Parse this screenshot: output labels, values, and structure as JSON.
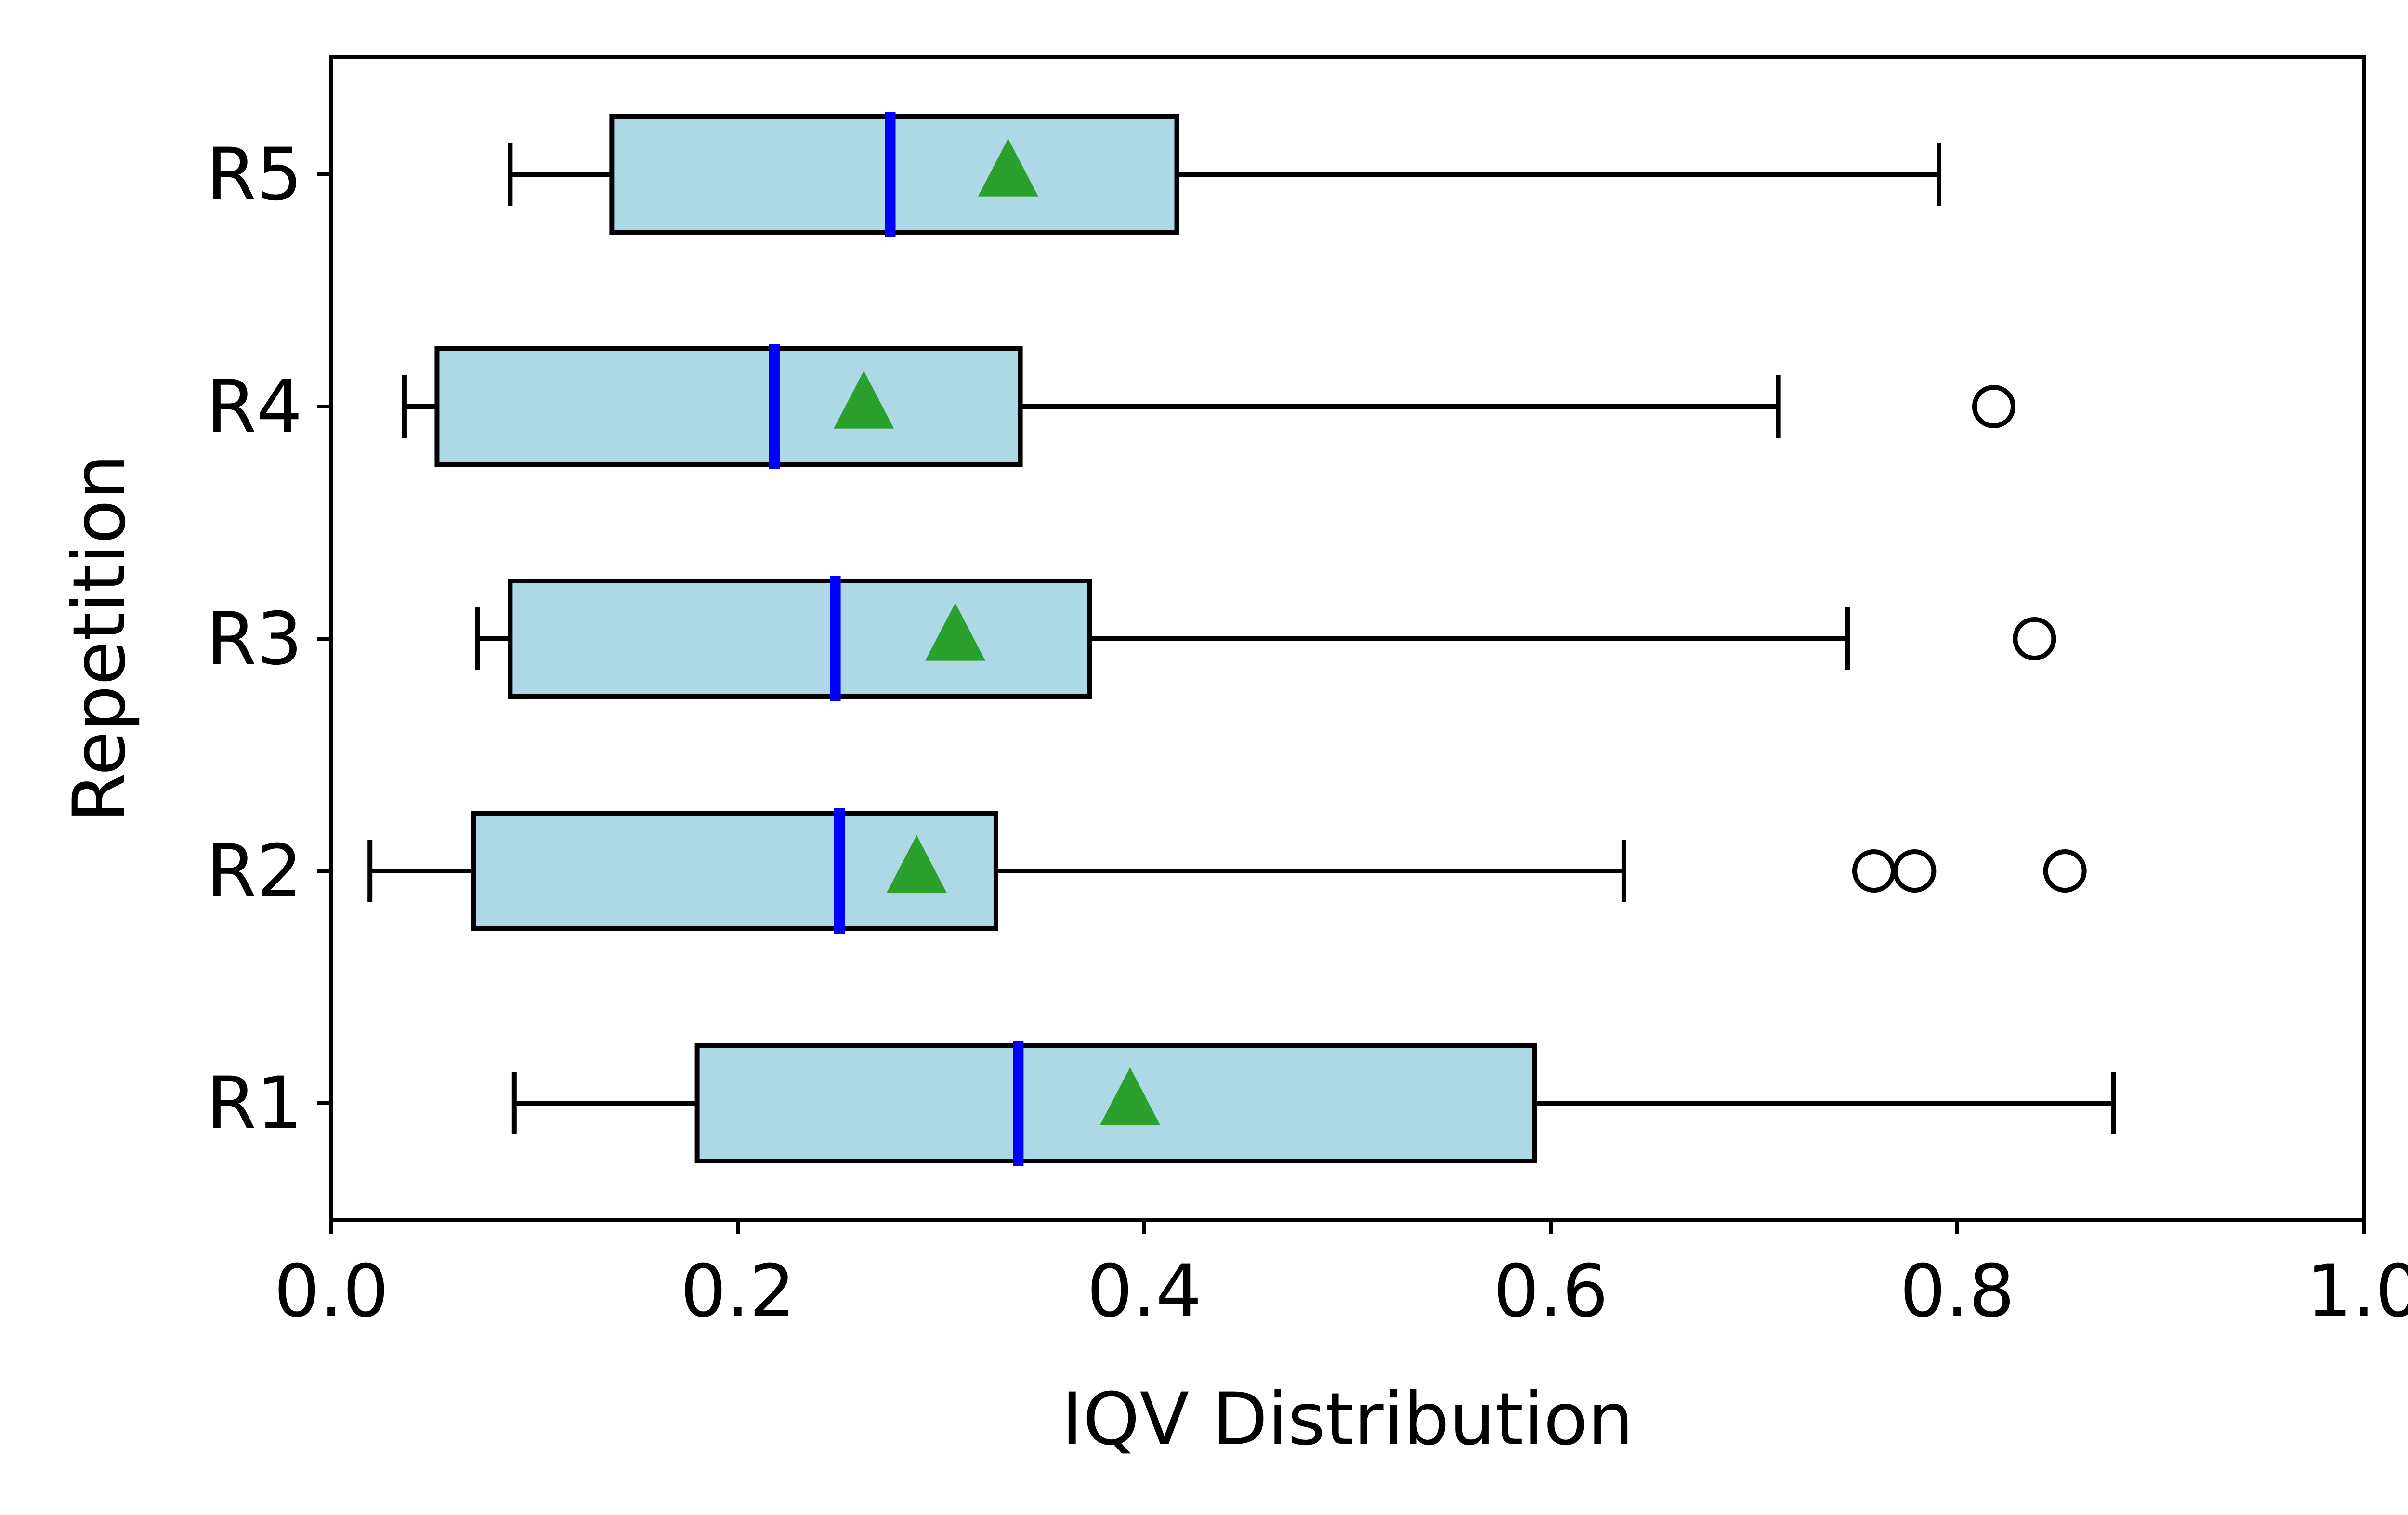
{
  "chart_data": {
    "type": "boxplot",
    "orientation": "horizontal",
    "xlabel": "IQV Distribution",
    "ylabel": "Repetition",
    "xlim": [
      0.0,
      1.0
    ],
    "xticks": [
      "0.0",
      "0.2",
      "0.4",
      "0.6",
      "0.8",
      "1.0"
    ],
    "categories": [
      "R1",
      "R2",
      "R3",
      "R4",
      "R5"
    ],
    "box_fill": "#add8e6",
    "median_color": "#0000ff",
    "mean_color": "#2ca02c",
    "series": [
      {
        "label": "R1",
        "whisker_low": 0.09,
        "q1": 0.18,
        "median": 0.338,
        "q3": 0.592,
        "whisker_high": 0.877,
        "mean": 0.393,
        "outliers": []
      },
      {
        "label": "R2",
        "whisker_low": 0.019,
        "q1": 0.07,
        "median": 0.25,
        "q3": 0.327,
        "whisker_high": 0.636,
        "mean": 0.288,
        "outliers": [
          0.759,
          0.779,
          0.853
        ]
      },
      {
        "label": "R3",
        "whisker_low": 0.072,
        "q1": 0.088,
        "median": 0.248,
        "q3": 0.373,
        "whisker_high": 0.746,
        "mean": 0.307,
        "outliers": [
          0.838
        ]
      },
      {
        "label": "R4",
        "whisker_low": 0.036,
        "q1": 0.052,
        "median": 0.218,
        "q3": 0.339,
        "whisker_high": 0.712,
        "mean": 0.262,
        "outliers": [
          0.818
        ]
      },
      {
        "label": "R5",
        "whisker_low": 0.088,
        "q1": 0.138,
        "median": 0.275,
        "q3": 0.416,
        "whisker_high": 0.791,
        "mean": 0.333,
        "outliers": []
      }
    ]
  }
}
